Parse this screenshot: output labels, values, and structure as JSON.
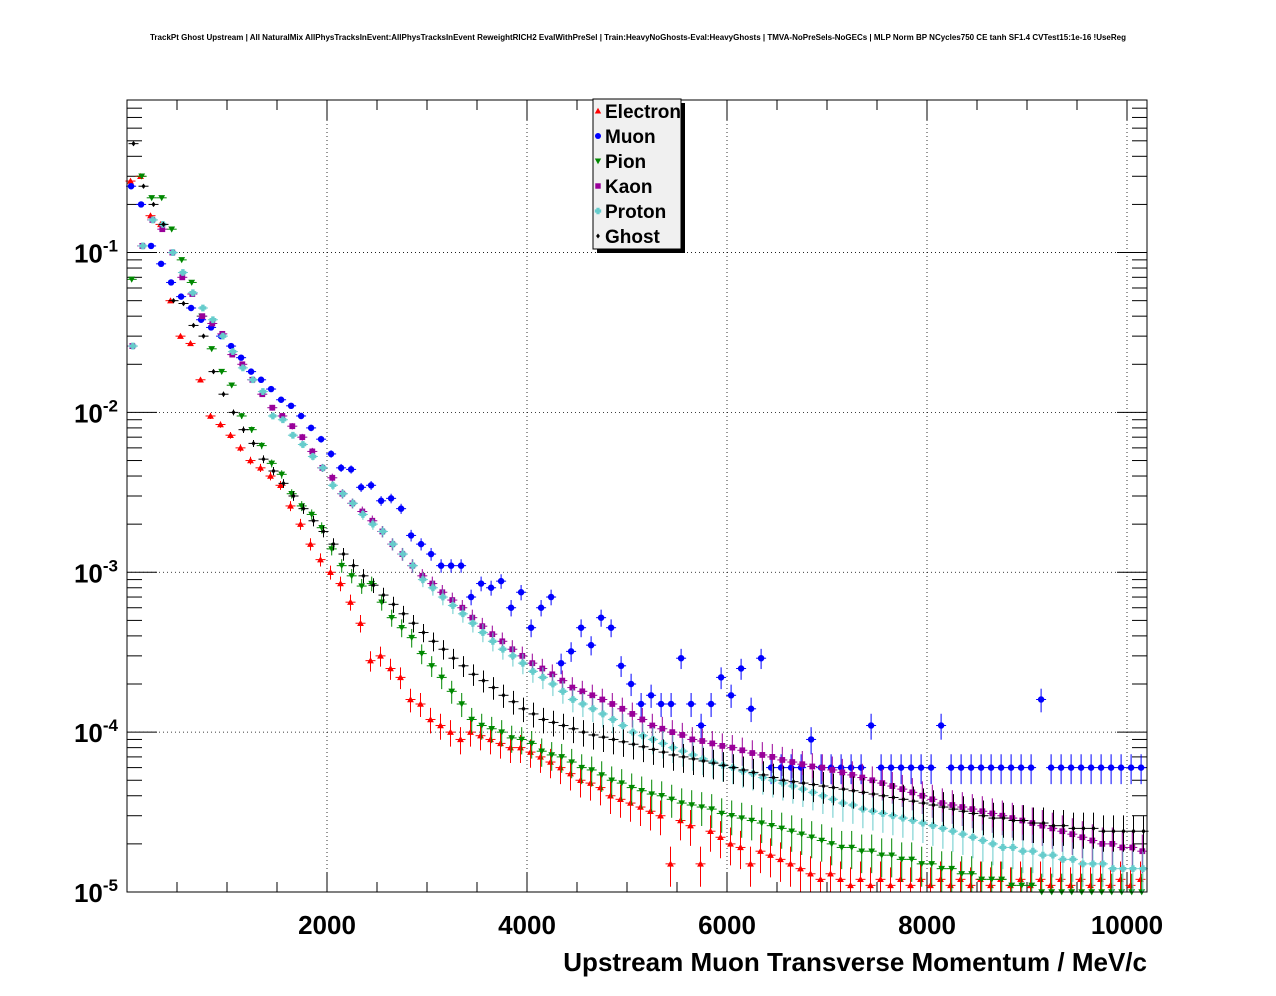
{
  "title": "TrackPt Ghost Upstream | All NaturalMix AllPhysTracksInEvent:AllPhysTracksInEvent ReweightRICH2 EvalWithPreSel | Train:HeavyNoGhosts-Eval:HeavyGhosts | TMVA-NoPreSels-NoGECs | MLP Norm BP NCycles750 CE tanh SF1.4 CVTest15:1e-16 !UseReg",
  "chart_data": {
    "type": "scatter",
    "title": "TrackPt Ghost Upstream | All NaturalMix AllPhysTracksInEvent:AllPhysTracksInEvent ReweightRICH2 EvalWithPreSel | Train:HeavyNoGhosts-Eval:HeavyGhosts | TMVA-NoPreSels-NoGECs | MLP Norm BP NCycles750 CE tanh SF1.4 CVTest15:1e-16 !UseReg",
    "xlabel": "Upstream Muon Transverse Momentum / MeV/c",
    "ylabel": "",
    "xlim": [
      0,
      10200
    ],
    "ylim": [
      1e-05,
      0.9
    ],
    "yscale": "log",
    "grid": true,
    "legend_position": "top-center",
    "x_ticks": [
      {
        "value": 2000,
        "label": "2000"
      },
      {
        "value": 4000,
        "label": "4000"
      },
      {
        "value": 6000,
        "label": "6000"
      },
      {
        "value": 8000,
        "label": "8000"
      },
      {
        "value": 10000,
        "label": "10000"
      }
    ],
    "y_ticks": [
      {
        "value": 0.1,
        "base": "10",
        "exp": "-1"
      },
      {
        "value": 0.01,
        "base": "10",
        "exp": "-2"
      },
      {
        "value": 0.001,
        "base": "10",
        "exp": "-3"
      },
      {
        "value": 0.0001,
        "base": "10",
        "exp": "-4"
      },
      {
        "value": 1e-05,
        "base": "10",
        "exp": "-5"
      }
    ],
    "x": [
      50,
      150,
      250,
      350,
      450,
      550,
      650,
      750,
      850,
      950,
      1050,
      1150,
      1250,
      1350,
      1450,
      1550,
      1650,
      1750,
      1850,
      1950,
      2050,
      2150,
      2250,
      2350,
      2450,
      2550,
      2650,
      2750,
      2850,
      2950,
      3050,
      3150,
      3250,
      3350,
      3450,
      3550,
      3650,
      3750,
      3850,
      3950,
      4050,
      4150,
      4250,
      4350,
      4450,
      4550,
      4650,
      4750,
      4850,
      4950,
      5050,
      5150,
      5250,
      5350,
      5450,
      5550,
      5650,
      5750,
      5850,
      5950,
      6050,
      6150,
      6250,
      6350,
      6450,
      6550,
      6650,
      6750,
      6850,
      6950,
      7050,
      7150,
      7250,
      7350,
      7450,
      7550,
      7650,
      7750,
      7850,
      7950,
      8050,
      8150,
      8250,
      8350,
      8450,
      8550,
      8650,
      8750,
      8850,
      8950,
      9050,
      9150,
      9250,
      9350,
      9450,
      9550,
      9650,
      9750,
      9850,
      9950,
      10050,
      10150
    ],
    "series": [
      {
        "name": "Electron",
        "color": "#ff0000",
        "marker": "triangle-up",
        "values": [
          0.28,
          0.3,
          0.17,
          0.15,
          0.05,
          0.03,
          0.027,
          0.016,
          0.0095,
          0.0084,
          0.0072,
          0.006,
          0.005,
          0.0045,
          0.004,
          0.0035,
          0.0026,
          0.002,
          0.0015,
          0.0012,
          0.001,
          0.00085,
          0.00065,
          0.00048,
          0.00028,
          0.0003,
          0.00025,
          0.00022,
          0.00016,
          0.00015,
          0.00012,
          0.00011,
          0.0001,
          9e-05,
          0.0001,
          9.5e-05,
          9e-05,
          8.5e-05,
          8e-05,
          8e-05,
          7.5e-05,
          7e-05,
          6.5e-05,
          6e-05,
          5.5e-05,
          5e-05,
          4.8e-05,
          4.5e-05,
          4e-05,
          3.8e-05,
          3.6e-05,
          3.4e-05,
          3.2e-05,
          3e-05,
          1.5e-05,
          2.8e-05,
          2.6e-05,
          1.5e-05,
          2.4e-05,
          2.2e-05,
          2e-05,
          1.9e-05,
          1.5e-05,
          1.8e-05,
          1.7e-05,
          1.6e-05,
          1.5e-05,
          1.4e-05,
          1.3e-05,
          1.2e-05,
          1.3e-05,
          1.2e-05,
          1.1e-05,
          1.2e-05,
          1.1e-05,
          1.2e-05,
          1.1e-05,
          1.2e-05,
          1.1e-05,
          1.2e-05,
          1.1e-05,
          1.2e-05,
          1.1e-05,
          1.2e-05,
          1.1e-05,
          1.2e-05,
          1.1e-05,
          1.2e-05,
          1.1e-05,
          1.2e-05,
          1.1e-05,
          1.2e-05,
          1.1e-05,
          1.2e-05,
          1.1e-05,
          1.2e-05,
          1.1e-05,
          1.2e-05,
          1.1e-05,
          1.2e-05,
          1.1e-05,
          1.2e-05
        ]
      },
      {
        "name": "Muon",
        "color": "#0000ff",
        "marker": "circle",
        "values": [
          0.26,
          0.2,
          0.11,
          0.085,
          0.065,
          0.053,
          0.045,
          0.038,
          0.034,
          0.03,
          0.026,
          0.022,
          0.018,
          0.016,
          0.014,
          0.012,
          0.011,
          0.0095,
          0.008,
          0.0068,
          0.0055,
          0.0045,
          0.0044,
          0.0034,
          0.0035,
          0.0028,
          0.0029,
          0.0025,
          0.0017,
          0.0015,
          0.0013,
          0.0011,
          0.0011,
          0.0011,
          0.0007,
          0.00085,
          0.0008,
          0.00088,
          0.0006,
          0.00075,
          0.00045,
          0.0006,
          0.0007,
          0.00027,
          0.00032,
          0.00045,
          0.00035,
          0.00052,
          0.00045,
          0.00026,
          0.0002,
          0.00015,
          0.00017,
          0.00015,
          0.00015,
          0.00029,
          0.00015,
          0.00011,
          0.00015,
          0.00022,
          0.00017,
          0.00025,
          0.00014,
          0.00029,
          6e-05,
          6e-05,
          6e-05,
          6e-05,
          9e-05,
          6e-05,
          6e-05,
          6e-05,
          6e-05,
          6e-05,
          0.00011,
          6e-05,
          6e-05,
          6e-05,
          6e-05,
          6e-05,
          6e-05,
          0.00011,
          6e-05,
          6e-05,
          6e-05,
          6e-05,
          6e-05,
          6e-05,
          6e-05,
          6e-05,
          6e-05,
          0.00016,
          6e-05,
          6e-05,
          6e-05,
          6e-05,
          6e-05,
          6e-05,
          6e-05,
          6e-05,
          6e-05,
          6e-05
        ]
      },
      {
        "name": "Pion",
        "color": "#008800",
        "marker": "triangle-down",
        "values": [
          0.068,
          0.3,
          0.22,
          0.22,
          0.14,
          0.09,
          0.065,
          0.04,
          0.025,
          0.018,
          0.0148,
          0.0095,
          0.0078,
          0.0062,
          0.0048,
          0.0041,
          0.0031,
          0.0026,
          0.0023,
          0.0019,
          0.0014,
          0.0011,
          0.00095,
          0.00082,
          0.00085,
          0.00065,
          0.00052,
          0.00045,
          0.00039,
          0.00031,
          0.00026,
          0.00022,
          0.00018,
          0.00015,
          0.00012,
          0.00011,
          0.000105,
          0.0001,
          9.2e-05,
          9e-05,
          8.5e-05,
          7.6e-05,
          7.2e-05,
          7e-05,
          6.5e-05,
          6e-05,
          5.8e-05,
          5.4e-05,
          5e-05,
          4.8e-05,
          4.5e-05,
          4.3e-05,
          4.1e-05,
          4e-05,
          3.8e-05,
          3.6e-05,
          3.5e-05,
          3.4e-05,
          3.3e-05,
          3.1e-05,
          3e-05,
          2.9e-05,
          2.8e-05,
          2.7e-05,
          2.6e-05,
          2.5e-05,
          2.4e-05,
          2.3e-05,
          2.2e-05,
          2.1e-05,
          2e-05,
          1.9e-05,
          1.9e-05,
          1.8e-05,
          1.8e-05,
          1.7e-05,
          1.7e-05,
          1.6e-05,
          1.6e-05,
          1.5e-05,
          1.5e-05,
          1.4e-05,
          1.4e-05,
          1.3e-05,
          1.3e-05,
          1.2e-05,
          1.2e-05,
          1.2e-05,
          1.1e-05,
          1.1e-05,
          1.1e-05,
          1e-05,
          1e-05,
          1e-05,
          1e-05,
          1e-05,
          1e-05,
          1e-05,
          1e-05,
          1e-05,
          1e-05,
          1e-05
        ]
      },
      {
        "name": "Kaon",
        "color": "#990099",
        "marker": "square",
        "values": [
          0.026,
          0.11,
          0.16,
          0.14,
          0.1,
          0.07,
          0.055,
          0.04,
          0.036,
          0.031,
          0.023,
          0.02,
          0.016,
          0.013,
          0.0107,
          0.0095,
          0.0082,
          0.007,
          0.0057,
          0.0045,
          0.0039,
          0.0031,
          0.0027,
          0.0024,
          0.0021,
          0.0018,
          0.0015,
          0.0013,
          0.0011,
          0.00095,
          0.00085,
          0.00075,
          0.00067,
          0.0006,
          0.00052,
          0.00046,
          0.00041,
          0.00037,
          0.00033,
          0.0003,
          0.00027,
          0.00025,
          0.00023,
          0.00021,
          0.00019,
          0.00018,
          0.00017,
          0.00016,
          0.00015,
          0.00014,
          0.00013,
          0.00012,
          0.00011,
          0.000105,
          0.0001,
          9.6e-05,
          9e-05,
          8.8e-05,
          8.5e-05,
          8.2e-05,
          8e-05,
          7.7e-05,
          7.4e-05,
          7.2e-05,
          7e-05,
          6.7e-05,
          6.5e-05,
          6.3e-05,
          6.1e-05,
          6e-05,
          5.8e-05,
          5.6e-05,
          5.4e-05,
          5.2e-05,
          5e-05,
          4.8e-05,
          4.6e-05,
          4.4e-05,
          4.2e-05,
          4e-05,
          3.8e-05,
          3.6e-05,
          3.5e-05,
          3.4e-05,
          3.3e-05,
          3.2e-05,
          3.1e-05,
          3e-05,
          2.9e-05,
          2.8e-05,
          2.7e-05,
          2.6e-05,
          2.5e-05,
          2.4e-05,
          2.3e-05,
          2.2e-05,
          2.1e-05,
          2e-05,
          2e-05,
          1.9e-05,
          1.9e-05,
          1.8e-05
        ]
      },
      {
        "name": "Proton",
        "color": "#66cccc",
        "marker": "cross",
        "values": [
          0.026,
          0.11,
          0.16,
          0.15,
          0.1,
          0.075,
          0.056,
          0.045,
          0.038,
          0.03,
          0.024,
          0.019,
          0.016,
          0.0135,
          0.0095,
          0.009,
          0.0072,
          0.0063,
          0.0053,
          0.0045,
          0.0035,
          0.0031,
          0.0027,
          0.0023,
          0.002,
          0.0018,
          0.0015,
          0.0013,
          0.0011,
          0.0009,
          0.0008,
          0.0007,
          0.00062,
          0.00055,
          0.00048,
          0.00042,
          0.00037,
          0.00033,
          0.0003,
          0.00027,
          0.00024,
          0.00022,
          0.0002,
          0.00018,
          0.00016,
          0.00015,
          0.00014,
          0.00013,
          0.00012,
          0.00011,
          0.0001,
          9.5e-05,
          9e-05,
          8.5e-05,
          8e-05,
          7.6e-05,
          7.2e-05,
          6.8e-05,
          6.5e-05,
          6.2e-05,
          6e-05,
          5.7e-05,
          5.5e-05,
          5.2e-05,
          5e-05,
          4.8e-05,
          4.6e-05,
          4.4e-05,
          4.2e-05,
          4e-05,
          3.8e-05,
          3.6e-05,
          3.5e-05,
          3.3e-05,
          3.2e-05,
          3.1e-05,
          3e-05,
          2.9e-05,
          2.8e-05,
          2.7e-05,
          2.6e-05,
          2.5e-05,
          2.4e-05,
          2.3e-05,
          2.2e-05,
          2.1e-05,
          2e-05,
          1.9e-05,
          1.9e-05,
          1.8e-05,
          1.8e-05,
          1.7e-05,
          1.7e-05,
          1.6e-05,
          1.6e-05,
          1.5e-05,
          1.5e-05,
          1.5e-05,
          1.4e-05,
          1.4e-05,
          1.4e-05,
          1.4e-05
        ]
      },
      {
        "name": "Ghost",
        "color": "#000000",
        "marker": "diamond",
        "values": [
          0.48,
          0.26,
          0.2,
          0.15,
          0.05,
          0.048,
          0.035,
          0.03,
          0.018,
          0.013,
          0.01,
          0.0078,
          0.0064,
          0.0051,
          0.0043,
          0.0036,
          0.003,
          0.0025,
          0.0021,
          0.0018,
          0.0015,
          0.0013,
          0.0011,
          0.00095,
          0.00083,
          0.00072,
          0.00063,
          0.00055,
          0.00048,
          0.00042,
          0.00037,
          0.00033,
          0.00029,
          0.00026,
          0.00023,
          0.00021,
          0.00019,
          0.00017,
          0.000155,
          0.00014,
          0.00013,
          0.00012,
          0.000115,
          0.00011,
          0.000105,
          0.0001,
          9.6e-05,
          9.3e-05,
          9e-05,
          8.7e-05,
          8.4e-05,
          8.1e-05,
          7.8e-05,
          7.5e-05,
          7.2e-05,
          7e-05,
          6.8e-05,
          6.6e-05,
          6.4e-05,
          6.2e-05,
          6e-05,
          5.8e-05,
          5.6e-05,
          5.4e-05,
          5.2e-05,
          5e-05,
          4.9e-05,
          4.8e-05,
          4.7e-05,
          4.6e-05,
          4.5e-05,
          4.4e-05,
          4.3e-05,
          4.2e-05,
          4.1e-05,
          4e-05,
          3.9e-05,
          3.8e-05,
          3.7e-05,
          3.6e-05,
          3.5e-05,
          3.4e-05,
          3.3e-05,
          3.2e-05,
          3.1e-05,
          3e-05,
          2.9e-05,
          2.9e-05,
          2.8e-05,
          2.8e-05,
          2.7e-05,
          2.7e-05,
          2.6e-05,
          2.6e-05,
          2.5e-05,
          2.5e-05,
          2.5e-05,
          2.4e-05,
          2.4e-05,
          2.4e-05,
          2.4e-05,
          2.4e-05
        ]
      }
    ]
  }
}
